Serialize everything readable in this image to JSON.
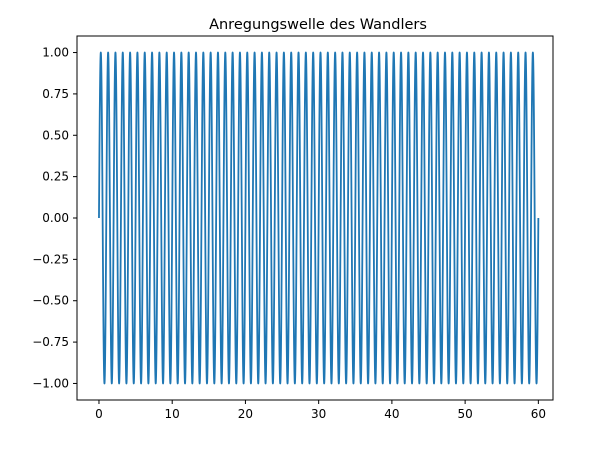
{
  "chart_data": {
    "type": "line",
    "title": "Anregungswelle des Wandlers",
    "xlabel": "",
    "ylabel": "",
    "xlim": [
      -3,
      62
    ],
    "ylim": [
      -1.1,
      1.1
    ],
    "xticks": [
      0,
      10,
      20,
      30,
      40,
      50,
      60
    ],
    "xtick_labels": [
      "0",
      "10",
      "20",
      "30",
      "40",
      "50",
      "60"
    ],
    "yticks": [
      -1.0,
      -0.75,
      -0.5,
      -0.25,
      0.0,
      0.25,
      0.5,
      0.75,
      1.0
    ],
    "ytick_labels": [
      "−1.00",
      "−0.75",
      "−0.50",
      "−0.25",
      "0.00",
      "0.25",
      "0.50",
      "0.75",
      "1.00"
    ],
    "grid": false,
    "series": [
      {
        "function": "sin",
        "amplitude": 1.0,
        "cycles": 60,
        "x_start": 0,
        "x_end": 60,
        "color": "#1f77b4"
      }
    ]
  }
}
